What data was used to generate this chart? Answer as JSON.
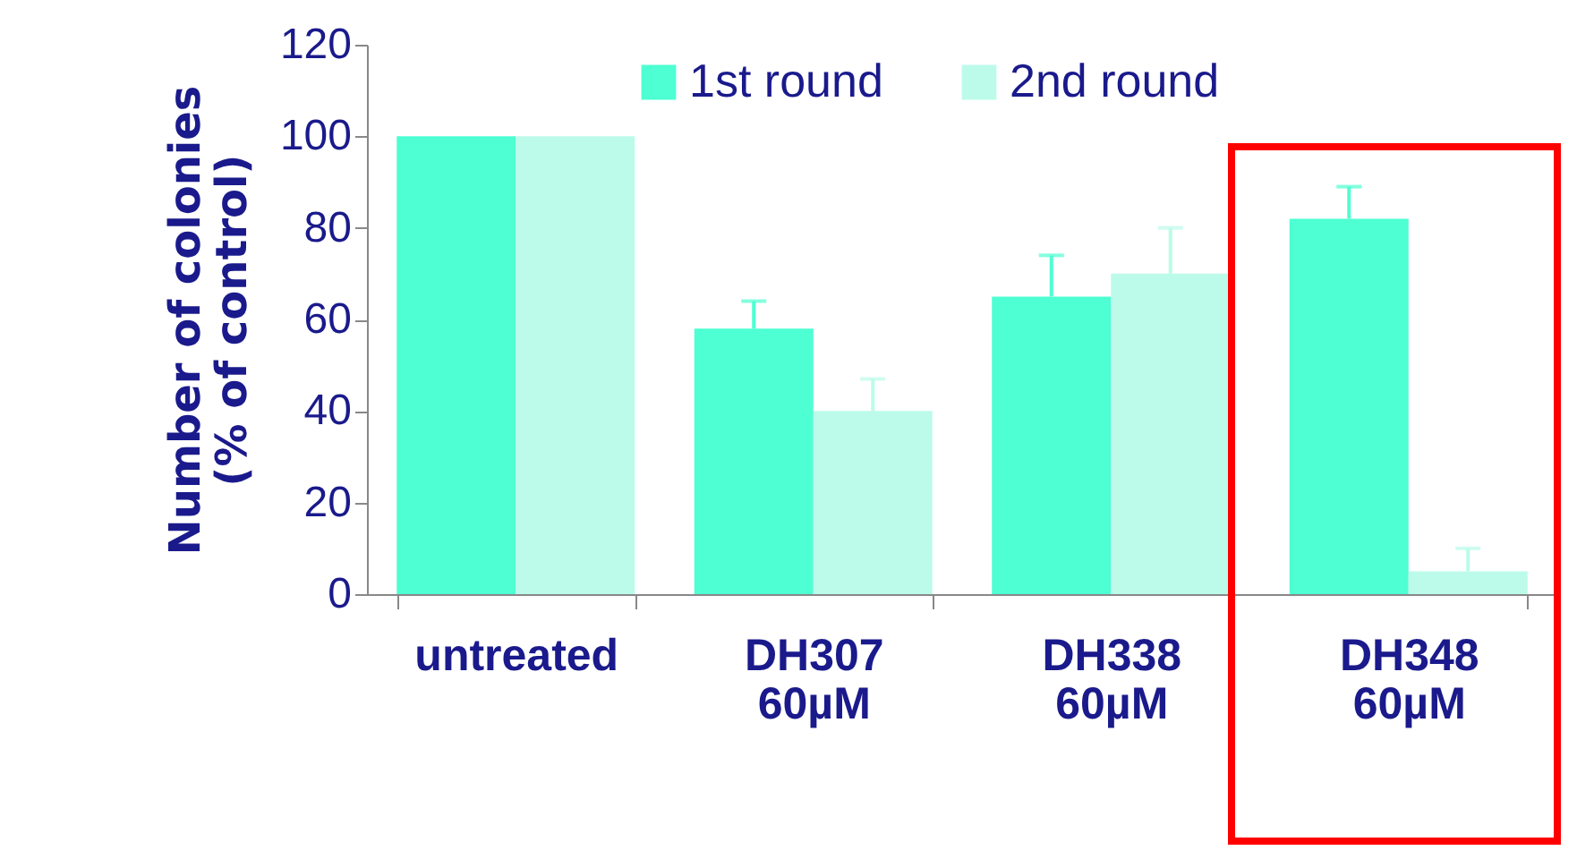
{
  "chart_data": {
    "type": "bar",
    "ylabel": "Number of colonies (% of control)",
    "categories": [
      "untreated",
      "DH307 60µM",
      "DH338 60µM",
      "DH348 60µM"
    ],
    "series": [
      {
        "name": "1st round",
        "color": "#4dffd2",
        "values": [
          100,
          58,
          65,
          82
        ],
        "errors": [
          null,
          [
            58,
            64
          ],
          [
            65,
            74
          ],
          [
            82,
            89
          ]
        ]
      },
      {
        "name": "2nd round",
        "color": "#bcfbea",
        "values": [
          100,
          40,
          70,
          5
        ],
        "errors": [
          null,
          [
            40,
            47
          ],
          [
            70,
            80
          ],
          [
            5,
            10
          ]
        ]
      }
    ],
    "ylim": [
      0,
      120
    ],
    "yticks": [
      0,
      20,
      40,
      60,
      80,
      100,
      120
    ],
    "grid": false,
    "legend": "top"
  }
}
